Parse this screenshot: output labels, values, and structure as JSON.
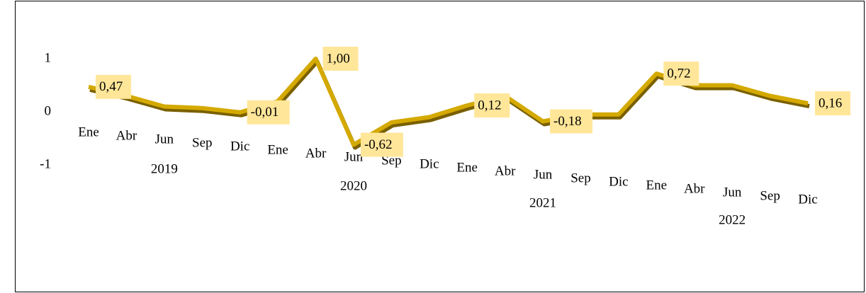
{
  "chart_data": {
    "type": "line",
    "categories": [
      "Ene",
      "Abr",
      "Jun",
      "Sep",
      "Dic",
      "Ene",
      "Abr",
      "Jun",
      "Sep",
      "Dic",
      "Ene",
      "Abr",
      "Jun",
      "Sep",
      "Dic",
      "Ene",
      "Abr",
      "Jun",
      "Sep",
      "Dic"
    ],
    "years": [
      "2019",
      "2020",
      "2021",
      "2022"
    ],
    "values": [
      0.47,
      0.3,
      0.1,
      0.07,
      -0.01,
      0.2,
      1.0,
      -0.62,
      -0.2,
      -0.1,
      0.12,
      0.3,
      -0.18,
      -0.05,
      -0.05,
      0.72,
      0.5,
      0.5,
      0.3,
      0.16
    ],
    "value_labels": [
      "0,47",
      null,
      null,
      null,
      "-0,01",
      null,
      "1,00",
      "-0,62",
      null,
      null,
      "0,12",
      null,
      "-0,18",
      null,
      null,
      "0,72",
      null,
      null,
      null,
      "0,16"
    ],
    "color": "#d4a900",
    "label_color": "#ffe699",
    "ylim": [
      -1,
      1
    ],
    "yticks": [
      -1,
      0,
      1
    ]
  }
}
